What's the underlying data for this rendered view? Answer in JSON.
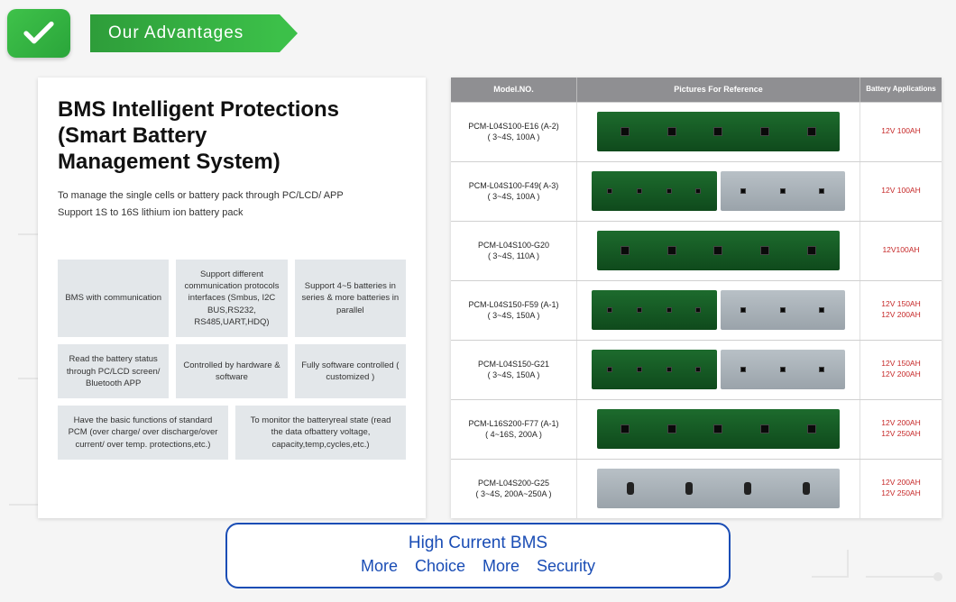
{
  "header": {
    "ribbon_text": "Our Advantages"
  },
  "left": {
    "title_l1": "BMS Intelligent Protections",
    "title_l2": "(Smart Battery",
    "title_l3": "Management System)",
    "sub_l1": "To manage the single cells or battery pack through PC/LCD/ APP",
    "sub_l2": "Support 1S to 16S lithium ion battery pack",
    "features_row1": [
      "BMS with communication",
      "Support different communication protocols interfaces (Smbus, I2C BUS,RS232, RS485,UART,HDQ)",
      "Support 4~5 batteries in series & more batteries in parallel"
    ],
    "features_row2": [
      "Read the battery status through PC/LCD screen/ Bluetooth APP",
      "Controlled by hardware & software",
      "Fully software controlled ( customized )"
    ],
    "features_row3": [
      "Have the basic functions of standard PCM (over charge/ over discharge/over current/ over temp. protections,etc.)",
      "To monitor the batteryreal state (read the data ofbattery voltage, capacity,temp,cycles,etc.)"
    ],
    "feature_bg": "#e3e7ea"
  },
  "table": {
    "headers": [
      "Model.NO.",
      "Pictures For Reference",
      "Battery Applications"
    ],
    "rows": [
      {
        "model": "PCM-L04S100-E16 (A-2)",
        "spec": "( 3~4S, 100A )",
        "pcb": "green",
        "apps": [
          "12V 100AH"
        ]
      },
      {
        "model": "PCM-L04S100-F49( A-3)",
        "spec": "( 3~4S, 100A )",
        "pcb": "split",
        "apps": [
          "12V 100AH"
        ]
      },
      {
        "model": "PCM-L04S100-G20",
        "spec": "( 3~4S, 110A )",
        "pcb": "green",
        "apps": [
          "12V100AH"
        ]
      },
      {
        "model": "PCM-L04S150-F59 (A-1)",
        "spec": "( 3~4S, 150A )",
        "pcb": "split",
        "apps": [
          "12V 150AH",
          "12V 200AH"
        ]
      },
      {
        "model": "PCM-L04S150-G21",
        "spec": "( 3~4S, 150A )",
        "pcb": "split",
        "apps": [
          "12V 150AH",
          "12V 200AH"
        ]
      },
      {
        "model": "PCM-L16S200-F77 (A-1)",
        "spec": "( 4~16S, 200A )",
        "pcb": "green",
        "apps": [
          "12V 200AH",
          "12V 250AH"
        ]
      },
      {
        "model": "PCM-L04S200-G25",
        "spec": "( 3~4S, 200A~250A )",
        "pcb": "silver",
        "apps": [
          "12V 200AH",
          "12V 250AH"
        ]
      }
    ],
    "header_bg": "#8f8f92",
    "app_color": "#c62828"
  },
  "banner": {
    "line1": "High Current BMS",
    "line2": "More Choice    More Security",
    "border_color": "#1a4db5"
  },
  "colors": {
    "ribbon_gradient": [
      "#2e9d3a",
      "#3cc049"
    ],
    "check_gradient": [
      "#3fc24a",
      "#2aa53a"
    ],
    "pcb_green": [
      "#1d6b2d",
      "#0f4a1c"
    ],
    "pcb_silver": [
      "#b8c0c6",
      "#9aa3aa"
    ],
    "page_bg": "#f5f5f5"
  }
}
